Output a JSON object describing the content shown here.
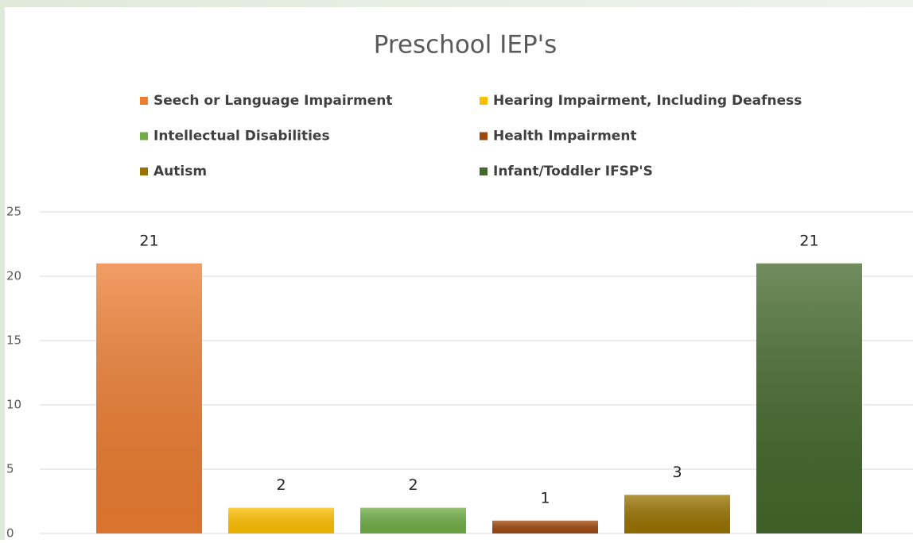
{
  "chart_data": {
    "type": "bar",
    "title": "Preschool IEP's",
    "categories": [
      null
    ],
    "series": [
      {
        "name": "Seech or Language Impairment",
        "color": "#ed7d31",
        "values": [
          21
        ]
      },
      {
        "name": "Hearing Impairment, Including Deafness",
        "color": "#ffc000",
        "values": [
          2
        ]
      },
      {
        "name": "Intellectual Disabilities",
        "color": "#70ad47",
        "values": [
          2
        ]
      },
      {
        "name": "Health Impairment",
        "color": "#9e480e",
        "values": [
          1
        ]
      },
      {
        "name": "Autism",
        "color": "#997300",
        "values": [
          3
        ]
      },
      {
        "name": "Infant/Toddler IFSP'S",
        "color": "#43682b",
        "values": [
          21
        ]
      }
    ],
    "ylim": [
      0,
      25
    ],
    "yticks": [
      0,
      5,
      10,
      15,
      20,
      25
    ],
    "grid": true,
    "legend": "top"
  }
}
